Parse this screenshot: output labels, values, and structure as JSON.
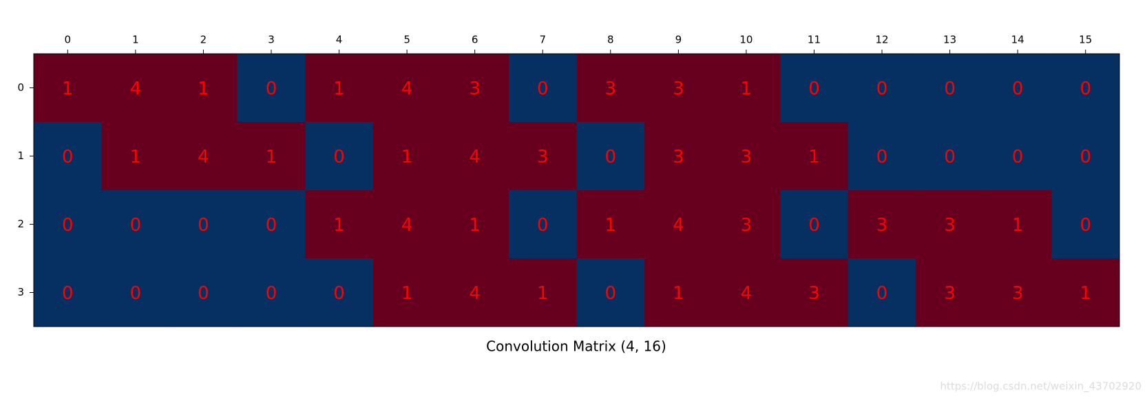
{
  "chart_data": {
    "type": "heatmap",
    "title": "Convolution Matrix (4, 16)",
    "x": [
      0,
      1,
      2,
      3,
      4,
      5,
      6,
      7,
      8,
      9,
      10,
      11,
      12,
      13,
      14,
      15
    ],
    "y": [
      0,
      1,
      2,
      3
    ],
    "values": [
      [
        1,
        4,
        1,
        0,
        1,
        4,
        3,
        0,
        3,
        3,
        1,
        0,
        0,
        0,
        0,
        0
      ],
      [
        0,
        1,
        4,
        1,
        0,
        1,
        4,
        3,
        0,
        3,
        3,
        1,
        0,
        0,
        0,
        0
      ],
      [
        0,
        0,
        0,
        0,
        1,
        4,
        1,
        0,
        1,
        4,
        3,
        0,
        3,
        3,
        1,
        0
      ],
      [
        0,
        0,
        0,
        0,
        0,
        1,
        4,
        1,
        0,
        1,
        4,
        3,
        0,
        3,
        3,
        1
      ]
    ],
    "zero_color": "#053061",
    "nonzero_color": "#67001f",
    "label_color": "#ff0000",
    "watermark": "https://blog.csdn.net/weixin_43702920"
  }
}
